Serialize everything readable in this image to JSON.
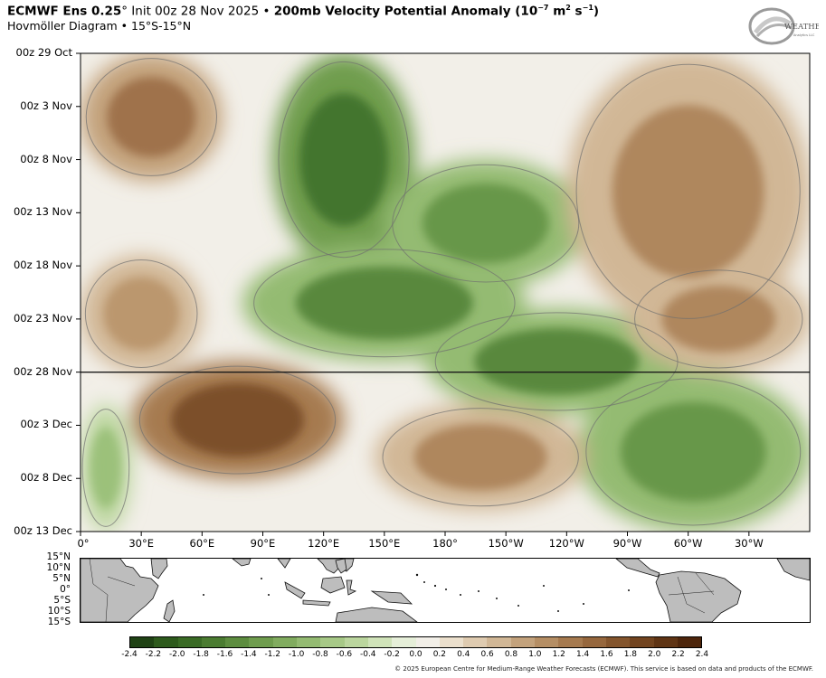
{
  "header": {
    "title_model": "ECMWF Ens 0.25",
    "title_deg": "°",
    "title_init": " Init 00z 28 Nov 2025 • ",
    "title_var": "200mb Velocity Potential Anomaly (10",
    "title_exp": "−7",
    "title_units_a": " m",
    "title_exp2": "2",
    "title_units_b": " s",
    "title_exp3": "−1",
    "title_close": ")",
    "subtitle": "Hovmöller Diagram • 15°S-15°N"
  },
  "logo": {
    "text": "WEATHERBELL",
    "subtext": "Analytics LLC"
  },
  "footer": {
    "copyright": "© 2025 European Centre for Medium-Range Weather Forecasts (ECMWF). This service is based on data and products of the ECMWF."
  },
  "map_inset": {
    "lat_labels": [
      "15°N",
      "10°N",
      "5°N",
      "0°",
      "5°S",
      "10°S",
      "15°S"
    ],
    "land_color": "#bdbdbd"
  },
  "chart_data": {
    "type": "heatmap",
    "title": "200mb Velocity Potential Anomaly (10^-7 m^2 s^-1)",
    "xlabel": "",
    "ylabel": "",
    "x_tick_labels": [
      "0°",
      "30°E",
      "60°E",
      "90°E",
      "120°E",
      "150°E",
      "180°",
      "150°W",
      "120°W",
      "90°W",
      "60°W",
      "30°W"
    ],
    "x_tick_lons": [
      0,
      30,
      60,
      90,
      120,
      150,
      180,
      210,
      240,
      270,
      300,
      330
    ],
    "xlim": [
      0,
      360
    ],
    "y_tick_labels": [
      "00z 29 Oct",
      "00z 3 Nov",
      "00z 8 Nov",
      "00z 13 Nov",
      "00z 18 Nov",
      "00z 23 Nov",
      "00z 28 Nov",
      "00z 3 Dec",
      "00z 8 Dec",
      "00z 13 Dec"
    ],
    "ylim": [
      "00z 29 Oct",
      "00z 13 Dec"
    ],
    "init_line": "00z 28 Nov",
    "colorbar": {
      "ticks": [
        "-2.4",
        "-2.2",
        "-2.0",
        "-1.8",
        "-1.6",
        "-1.4",
        "-1.2",
        "-1.0",
        "-0.8",
        "-0.6",
        "-0.4",
        "-0.2",
        "0.0",
        "0.2",
        "0.4",
        "0.6",
        "0.8",
        "1.0",
        "1.2",
        "1.4",
        "1.6",
        "1.8",
        "2.0",
        "2.2",
        "2.4"
      ],
      "colors": [
        "#1f4214",
        "#2d5a1c",
        "#3a6b25",
        "#4b7c31",
        "#5d8d3f",
        "#6f9d4e",
        "#81ac5f",
        "#94bb72",
        "#a7c987",
        "#bbd69e",
        "#d0e3b9",
        "#e6efd9",
        "#f2efe8",
        "#ece0cd",
        "#dfcbb0",
        "#d1b796",
        "#c3a27c",
        "#b58e64",
        "#a67a4f",
        "#96673d",
        "#84552d",
        "#72441f",
        "#5f3414",
        "#4d250b"
      ]
    },
    "anomaly_features": [
      {
        "sign": "negative",
        "lon": [
          95,
          165
        ],
        "time": [
          "00z 29 Oct",
          "00z 18 Nov"
        ],
        "peak": -2.2
      },
      {
        "sign": "negative",
        "lon": [
          150,
          250
        ],
        "time": [
          "00z 8 Nov",
          "00z 20 Nov"
        ],
        "peak": -1.6
      },
      {
        "sign": "negative",
        "lon": [
          80,
          220
        ],
        "time": [
          "00z 16 Nov",
          "00z 27 Nov"
        ],
        "peak": -1.8
      },
      {
        "sign": "negative",
        "lon": [
          170,
          300
        ],
        "time": [
          "00z 22 Nov",
          "00z 2 Dec"
        ],
        "peak": -1.8
      },
      {
        "sign": "negative",
        "lon": [
          245,
          360
        ],
        "time": [
          "00z 28 Nov",
          "00z 13 Dec"
        ],
        "peak": -1.6
      },
      {
        "sign": "negative",
        "lon": [
          0,
          25
        ],
        "time": [
          "00z 1 Dec",
          "00z 13 Dec"
        ],
        "peak": -1.0
      },
      {
        "sign": "positive",
        "lon": [
          25,
          130
        ],
        "time": [
          "00z 27 Nov",
          "00z 8 Dec"
        ],
        "peak": 2.2
      },
      {
        "sign": "positive",
        "lon": [
          0,
          70
        ],
        "time": [
          "00z 29 Oct",
          "00z 10 Nov"
        ],
        "peak": 1.6
      },
      {
        "sign": "positive",
        "lon": [
          145,
          250
        ],
        "time": [
          "00z 1 Dec",
          "00z 11 Dec"
        ],
        "peak": 1.4
      },
      {
        "sign": "positive",
        "lon": [
          240,
          360
        ],
        "time": [
          "00z 29 Oct",
          "00z 24 Nov"
        ],
        "peak": 1.4
      },
      {
        "sign": "positive",
        "lon": [
          0,
          60
        ],
        "time": [
          "00z 17 Nov",
          "00z 28 Nov"
        ],
        "peak": 1.2
      },
      {
        "sign": "positive",
        "lon": [
          270,
          360
        ],
        "time": [
          "00z 18 Nov",
          "00z 28 Nov"
        ],
        "peak": 1.4
      }
    ]
  }
}
